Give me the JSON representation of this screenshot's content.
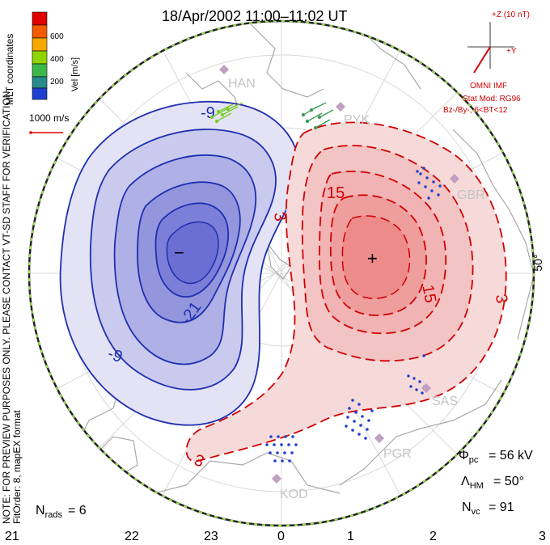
{
  "title": "18/Apr/2002 11:00–11:02 UT",
  "colorbar": {
    "label": "Vel [m/s]",
    "ticks": [
      "600",
      "400",
      "200"
    ],
    "colors": [
      "#e00000",
      "#f25a00",
      "#f7a800",
      "#8fd400",
      "#3cb84a",
      "#2a8a8a",
      "#1f3fd0"
    ]
  },
  "side_text": {
    "mlt_coordinates": "MLT coordinates",
    "preview_note": "NOTE: FOR PREVIEW PURPOSES ONLY. PLEASE CONTACT VT-SD STAFF FOR VERIFICATION.",
    "fit_order": "FitOrder: 8, mapEX format"
  },
  "velocity_scale": "1000 m/s",
  "imf": {
    "z_label": "+Z (10 nT)",
    "y_label": "+Y",
    "source": "OMNI IMF",
    "stat_mod": "Stat Mod: RG96",
    "condition": "Bz-/By-, 6<BT<12"
  },
  "stations": [
    "HAN",
    "PYK",
    "GBR",
    "SAS",
    "PGR",
    "KOD"
  ],
  "contour_labels": {
    "negative": [
      "-9",
      "-21",
      "-9"
    ],
    "positive": [
      "3",
      "15",
      "15",
      "3",
      "3"
    ],
    "min_marker": "−",
    "max_marker": "+"
  },
  "latitude_label": "50°",
  "mlt_ticks": [
    "21",
    "22",
    "23",
    "0",
    "1",
    "2",
    "3"
  ],
  "stats": {
    "n_rads": "N",
    "n_rads_sub": "rads",
    "n_rads_value": "= 6",
    "phi_pc": "Φ",
    "phi_pc_sub": "pc",
    "phi_pc_value": "= 56 kV",
    "lambda_hm": "Λ",
    "lambda_hm_sub": "HM",
    "lambda_hm_value": "= 50°",
    "n_vc": "N",
    "n_vc_sub": "vc",
    "n_vc_value": "= 91"
  }
}
